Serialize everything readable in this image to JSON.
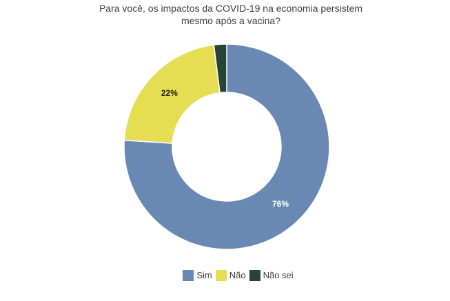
{
  "chart_data": {
    "type": "pie",
    "subtype": "donut",
    "title": "Para você, os impactos da COVID-19 na economia persistem mesmo após a vacina?",
    "hole_ratio": 0.53,
    "start_angle_deg": 0,
    "direction": "clockwise",
    "legend_position": "bottom",
    "unit": "percent",
    "slices": [
      {
        "label": "Sim",
        "value": 76,
        "pct_label": "76%",
        "color": "#6989b4",
        "pct_label_color": "#ffffff"
      },
      {
        "label": "Não",
        "value": 22,
        "pct_label": "22%",
        "color": "#e6de52",
        "pct_label_color": "#1a1a1a"
      },
      {
        "label": "Não sei",
        "value": 2,
        "pct_label": null,
        "color": "#274439",
        "pct_label_color": null
      }
    ],
    "separator_color": "#ffffff"
  }
}
